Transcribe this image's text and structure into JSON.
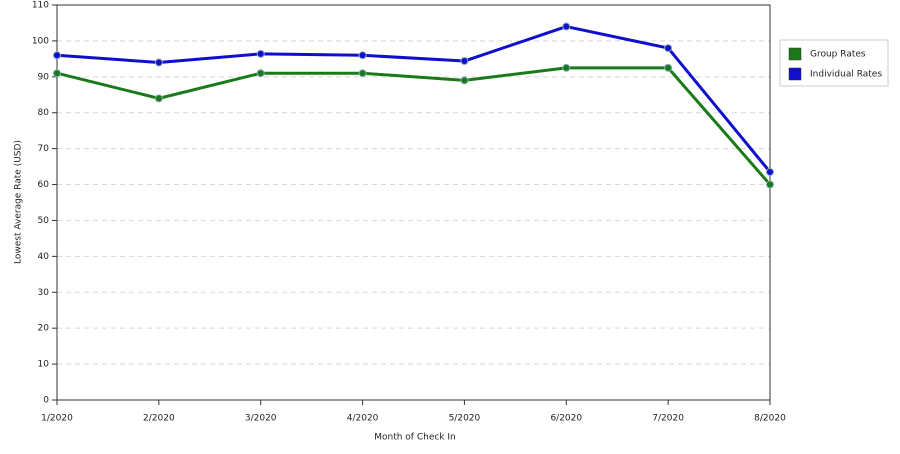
{
  "chart_data": {
    "type": "line",
    "x_label": "Month of Check In",
    "y_label": "Lowest Average Rate (USD)",
    "categories": [
      "1/2020",
      "2/2020",
      "3/2020",
      "4/2020",
      "5/2020",
      "6/2020",
      "7/2020",
      "8/2020"
    ],
    "series": [
      {
        "name": "Group Rates",
        "color": "#1a7a1a",
        "values": [
          91,
          84,
          91,
          91,
          89,
          92.5,
          92.5,
          60
        ]
      },
      {
        "name": "Individual Rates",
        "color": "#1010cc",
        "values": [
          96,
          94,
          96.4,
          96,
          94.4,
          104,
          98,
          63.5
        ]
      }
    ],
    "ylim": [
      0,
      110
    ],
    "yticks": [
      0,
      10,
      20,
      30,
      40,
      50,
      60,
      70,
      80,
      90,
      100,
      110
    ],
    "grid": true,
    "legend": "right"
  }
}
